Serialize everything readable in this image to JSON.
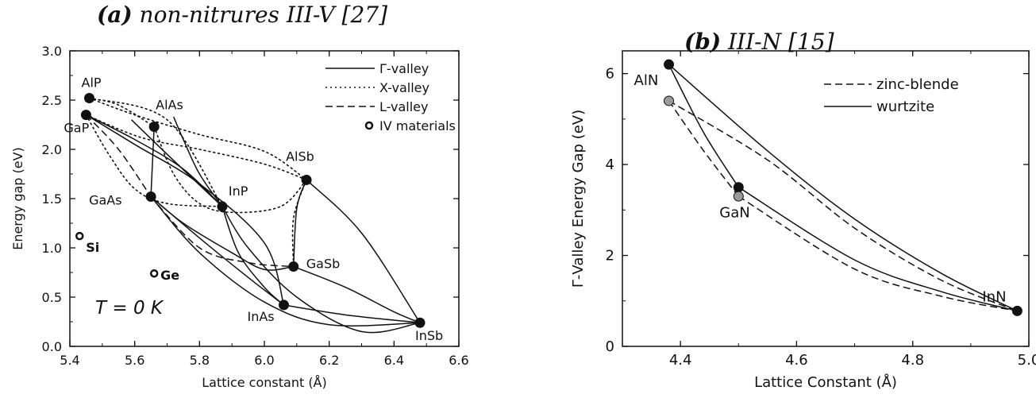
{
  "panels": {
    "a": {
      "label": "(a)",
      "caption": "non-nitrures III-V  [27]"
    },
    "b": {
      "label": "(b)",
      "caption": "III-N  [15]"
    }
  },
  "chart_data": [
    {
      "type": "line",
      "panel": "a",
      "title": "(a) non-nitrures III-V  [27]",
      "xlabel": "Lattice constant (Å)",
      "ylabel": "Energy gap (eV)",
      "xlim": [
        5.4,
        6.6
      ],
      "ylim": [
        0.0,
        3.0
      ],
      "xticks": [
        "5.4",
        "5.6",
        "5.8",
        "6.0",
        "6.2",
        "6.4",
        "6.6"
      ],
      "yticks": [
        "0.0",
        "0.5",
        "1.0",
        "1.5",
        "2.0",
        "2.5",
        "3.0"
      ],
      "legend": {
        "position": "top-right",
        "entries": [
          "Γ-valley",
          "X-valley",
          "L-valley",
          "IV materials"
        ]
      },
      "annotation": {
        "temperature": "T =  0 K"
      },
      "points": [
        {
          "name": "AlP",
          "x": 5.46,
          "y": 2.52,
          "kind": "III-V"
        },
        {
          "name": "GaP",
          "x": 5.45,
          "y": 2.35,
          "kind": "III-V"
        },
        {
          "name": "AlAs",
          "x": 5.66,
          "y": 2.23,
          "kind": "III-V"
        },
        {
          "name": "AlSb",
          "x": 6.13,
          "y": 1.69,
          "kind": "III-V"
        },
        {
          "name": "InP",
          "x": 5.87,
          "y": 1.42,
          "kind": "III-V"
        },
        {
          "name": "GaAs",
          "x": 5.65,
          "y": 1.52,
          "kind": "III-V"
        },
        {
          "name": "GaSb",
          "x": 6.09,
          "y": 0.81,
          "kind": "III-V"
        },
        {
          "name": "InAs",
          "x": 6.06,
          "y": 0.42,
          "kind": "III-V"
        },
        {
          "name": "InSb",
          "x": 6.48,
          "y": 0.24,
          "kind": "III-V"
        },
        {
          "name": "Si",
          "x": 5.43,
          "y": 1.12,
          "kind": "IV"
        },
        {
          "name": "Ge",
          "x": 5.66,
          "y": 0.74,
          "kind": "IV"
        }
      ],
      "curves": [
        {
          "style": "solid",
          "points": [
            [
              5.45,
              2.35
            ],
            [
              5.6,
              2.1
            ],
            [
              5.75,
              1.8
            ],
            [
              5.87,
              1.42
            ]
          ]
        },
        {
          "style": "solid",
          "points": [
            [
              5.45,
              2.35
            ],
            [
              5.6,
              2.05
            ],
            [
              5.8,
              1.65
            ],
            [
              6.0,
              1.05
            ],
            [
              6.06,
              0.42
            ]
          ]
        },
        {
          "style": "solid",
          "points": [
            [
              5.59,
              2.3
            ],
            [
              5.7,
              1.95
            ],
            [
              5.87,
              1.42
            ]
          ]
        },
        {
          "style": "solid",
          "points": [
            [
              5.66,
              2.23
            ],
            [
              5.65,
              1.52
            ]
          ]
        },
        {
          "style": "solid",
          "points": [
            [
              5.65,
              1.52
            ],
            [
              5.75,
              1.25
            ],
            [
              5.9,
              0.95
            ],
            [
              6.0,
              0.78
            ],
            [
              6.09,
              0.81
            ]
          ]
        },
        {
          "style": "solid",
          "points": [
            [
              5.65,
              1.52
            ],
            [
              5.8,
              1.1
            ],
            [
              5.95,
              0.7
            ],
            [
              6.06,
              0.42
            ]
          ]
        },
        {
          "style": "solid",
          "points": [
            [
              5.87,
              1.42
            ],
            [
              5.92,
              0.95
            ],
            [
              6.0,
              0.6
            ],
            [
              6.06,
              0.42
            ]
          ]
        },
        {
          "style": "solid",
          "points": [
            [
              5.65,
              1.52
            ],
            [
              5.8,
              0.95
            ],
            [
              6.0,
              0.45
            ],
            [
              6.2,
              0.22
            ],
            [
              6.48,
              0.24
            ]
          ]
        },
        {
          "style": "solid",
          "points": [
            [
              6.09,
              0.81
            ],
            [
              6.25,
              0.6
            ],
            [
              6.4,
              0.35
            ],
            [
              6.48,
              0.24
            ]
          ]
        },
        {
          "style": "solid",
          "points": [
            [
              6.06,
              0.42
            ],
            [
              6.25,
              0.32
            ],
            [
              6.48,
              0.24
            ]
          ]
        },
        {
          "style": "solid",
          "points": [
            [
              5.87,
              1.42
            ],
            [
              5.95,
              1.0
            ],
            [
              6.1,
              0.5
            ],
            [
              6.3,
              0.15
            ],
            [
              6.48,
              0.24
            ]
          ]
        },
        {
          "style": "solid",
          "points": [
            [
              6.09,
              0.81
            ],
            [
              6.1,
              1.4
            ],
            [
              6.13,
              1.69
            ]
          ]
        },
        {
          "style": "solid",
          "points": [
            [
              5.72,
              2.33
            ],
            [
              5.75,
              2.1
            ],
            [
              5.8,
              1.75
            ],
            [
              5.87,
              1.42
            ]
          ]
        },
        {
          "style": "solid",
          "points": [
            [
              6.13,
              1.69
            ],
            [
              6.3,
              1.15
            ],
            [
              6.48,
              0.24
            ]
          ]
        },
        {
          "style": "dotted",
          "points": [
            [
              5.46,
              2.52
            ],
            [
              5.6,
              2.35
            ],
            [
              5.8,
              2.15
            ],
            [
              6.0,
              1.98
            ],
            [
              6.13,
              1.69
            ]
          ]
        },
        {
          "style": "dotted",
          "points": [
            [
              5.45,
              2.35
            ],
            [
              5.62,
              2.12
            ],
            [
              5.8,
              2.0
            ],
            [
              6.0,
              1.85
            ],
            [
              6.13,
              1.69
            ]
          ]
        },
        {
          "style": "dotted",
          "points": [
            [
              5.46,
              2.52
            ],
            [
              5.55,
              2.45
            ],
            [
              5.66,
              2.23
            ]
          ]
        },
        {
          "style": "dotted",
          "points": [
            [
              5.45,
              2.35
            ],
            [
              5.52,
              1.95
            ],
            [
              5.6,
              1.6
            ],
            [
              5.7,
              1.45
            ],
            [
              5.87,
              1.42
            ]
          ]
        },
        {
          "style": "dotted",
          "points": [
            [
              5.66,
              2.23
            ],
            [
              5.72,
              1.75
            ],
            [
              5.8,
              1.45
            ],
            [
              5.9,
              1.36
            ],
            [
              6.05,
              1.42
            ],
            [
              6.13,
              1.69
            ]
          ]
        },
        {
          "style": "dotted",
          "points": [
            [
              5.46,
              2.52
            ],
            [
              5.7,
              2.3
            ],
            [
              5.87,
              1.42
            ]
          ]
        },
        {
          "style": "dotted",
          "points": [
            [
              6.13,
              1.69
            ],
            [
              6.09,
              1.3
            ],
            [
              6.09,
              0.81
            ]
          ]
        },
        {
          "style": "dashed",
          "points": [
            [
              5.65,
              1.52
            ],
            [
              5.8,
              1.0
            ],
            [
              5.95,
              0.85
            ],
            [
              6.09,
              0.81
            ]
          ]
        },
        {
          "style": "dashed",
          "points": [
            [
              5.45,
              2.35
            ],
            [
              5.55,
              2.0
            ],
            [
              5.65,
              1.52
            ]
          ]
        }
      ]
    },
    {
      "type": "line",
      "panel": "b",
      "title": "(b) III-N  [15]",
      "xlabel": "Lattice Constant (Å)",
      "ylabel": "Γ-Valley Energy Gap (eV)",
      "xlim": [
        4.3,
        5.0
      ],
      "ylim": [
        0,
        6.5
      ],
      "xticks": [
        "4.4",
        "4.6",
        "4.8",
        "5.0"
      ],
      "yticks": [
        "0",
        "2",
        "4",
        "6"
      ],
      "legend": {
        "position": "top-right",
        "entries": [
          "zinc-blende",
          "wurtzite"
        ]
      },
      "points": [
        {
          "name": "AlN",
          "x": 4.38,
          "y": 6.2,
          "kind": "wurtzite"
        },
        {
          "name": "AlN",
          "x": 4.38,
          "y": 5.4,
          "kind": "zinc-blende"
        },
        {
          "name": "GaN",
          "x": 4.5,
          "y": 3.5,
          "kind": "wurtzite"
        },
        {
          "name": "GaN",
          "x": 4.5,
          "y": 3.3,
          "kind": "zinc-blende"
        },
        {
          "name": "InN",
          "x": 4.98,
          "y": 0.78,
          "kind": "wurtzite"
        }
      ],
      "curves": [
        {
          "style": "solid",
          "points": [
            [
              4.38,
              6.2
            ],
            [
              4.55,
              4.3
            ],
            [
              4.7,
              2.8
            ],
            [
              4.85,
              1.6
            ],
            [
              4.98,
              0.78
            ]
          ]
        },
        {
          "style": "solid",
          "points": [
            [
              4.38,
              6.2
            ],
            [
              4.44,
              4.7
            ],
            [
              4.5,
              3.5
            ]
          ]
        },
        {
          "style": "solid",
          "points": [
            [
              4.5,
              3.5
            ],
            [
              4.7,
              1.9
            ],
            [
              4.85,
              1.2
            ],
            [
              4.98,
              0.78
            ]
          ]
        },
        {
          "style": "dashed",
          "points": [
            [
              4.38,
              5.4
            ],
            [
              4.55,
              4.1
            ],
            [
              4.7,
              2.6
            ],
            [
              4.85,
              1.45
            ],
            [
              4.98,
              0.78
            ]
          ]
        },
        {
          "style": "dashed",
          "points": [
            [
              4.38,
              5.4
            ],
            [
              4.44,
              4.3
            ],
            [
              4.5,
              3.3
            ]
          ]
        },
        {
          "style": "dashed",
          "points": [
            [
              4.5,
              3.3
            ],
            [
              4.7,
              1.7
            ],
            [
              4.85,
              1.1
            ],
            [
              4.98,
              0.78
            ]
          ]
        }
      ]
    }
  ]
}
